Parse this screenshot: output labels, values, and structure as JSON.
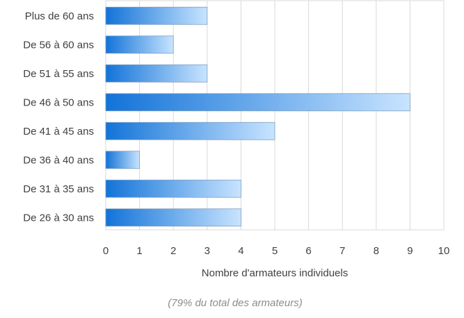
{
  "chart_data": {
    "type": "bar",
    "orientation": "horizontal",
    "categories": [
      "Plus de 60 ans",
      "De 56 à 60 ans",
      "De 51 à 55 ans",
      "De 46 à 50 ans",
      "De 41 à 45 ans",
      "De 36 à 40 ans",
      "De 31 à 35 ans",
      "De 26 à 30 ans"
    ],
    "values": [
      3,
      2,
      3,
      9,
      5,
      1,
      4,
      4
    ],
    "xlabel": "Nombre d'armateurs individuels",
    "ylabel": "",
    "xlim": [
      0,
      10
    ],
    "xticks": [
      "0",
      "1",
      "2",
      "3",
      "4",
      "5",
      "6",
      "7",
      "8",
      "9",
      "10"
    ],
    "grid": true,
    "legend": "none",
    "caption": "(79% du total des armateurs)",
    "colors": {
      "bar_gradient_start": "#1273d8",
      "bar_gradient_end": "#c8e4ff",
      "grid": "#d9d9d9"
    }
  }
}
